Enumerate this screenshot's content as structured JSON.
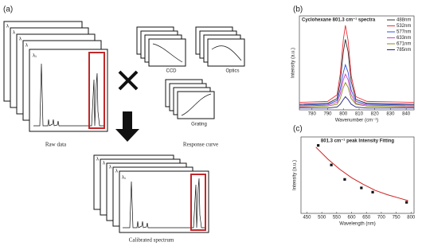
{
  "diagram": {
    "panel_a": "(a)",
    "panel_b": "(b)",
    "panel_c": "(c)",
    "stack_label": "λ",
    "front_label": "λ₁",
    "raw_caption": "Raw data",
    "response_caption": "Response curve",
    "calibrated_caption": "Calibrated spectrum",
    "ccd": "CCD",
    "optics": "Optics",
    "grating": "Grating"
  },
  "chart_data": [
    {
      "type": "line",
      "title": "Cyclohexane 801.3 cm⁻¹ spectra",
      "x_label": "Wavenumber (cm⁻¹)",
      "y_label": "Intensity (a.u.)",
      "x": [
        772,
        790,
        796,
        798,
        800,
        801.3,
        803,
        805,
        808,
        815,
        845
      ],
      "xlim": [
        772,
        845
      ],
      "xticks": [
        780,
        790,
        800,
        810,
        820,
        830,
        840
      ],
      "ylim": [
        0,
        100
      ],
      "series": [
        {
          "name": "488nm",
          "color": "#333333",
          "values": [
            6,
            7,
            12,
            30,
            62,
            75,
            62,
            30,
            11,
            7,
            6
          ]
        },
        {
          "name": "532nm",
          "color": "#e8303a",
          "values": [
            8,
            9,
            16,
            38,
            75,
            90,
            74,
            36,
            14,
            9,
            8
          ]
        },
        {
          "name": "577nm",
          "color": "#3050e0",
          "values": [
            5,
            6,
            10,
            22,
            40,
            48,
            40,
            21,
            9,
            6,
            5
          ]
        },
        {
          "name": "633nm",
          "color": "#d040c0",
          "values": [
            4,
            5,
            8,
            17,
            32,
            38,
            32,
            16,
            7,
            5,
            4
          ]
        },
        {
          "name": "671nm",
          "color": "#8a8a20",
          "values": [
            3,
            4,
            6,
            12,
            24,
            29,
            24,
            12,
            6,
            4,
            3
          ]
        },
        {
          "name": "785nm",
          "color": "#202080",
          "values": [
            2,
            2,
            3,
            6,
            11,
            14,
            11,
            6,
            3,
            2,
            2
          ]
        }
      ]
    },
    {
      "type": "scatter",
      "title": "801.3 cm⁻¹ peak Intensity Fitting",
      "x_label": "Wavelength (nm)",
      "y_label": "Intensity (a.u.)",
      "x": [
        488,
        532,
        577,
        633,
        671,
        785
      ],
      "values": [
        95,
        72,
        55,
        45,
        40,
        28
      ],
      "color": "#111111",
      "fit": {
        "color": "#d02020",
        "x": [
          480,
          520,
          560,
          600,
          640,
          680,
          720,
          760,
          790
        ],
        "values": [
          93,
          79,
          67,
          57,
          49,
          42,
          37,
          33,
          30
        ]
      },
      "xlim": [
        430,
        810
      ],
      "xticks": [
        450,
        500,
        550,
        600,
        650,
        700,
        750,
        800
      ],
      "ylim": [
        15,
        105
      ]
    }
  ]
}
